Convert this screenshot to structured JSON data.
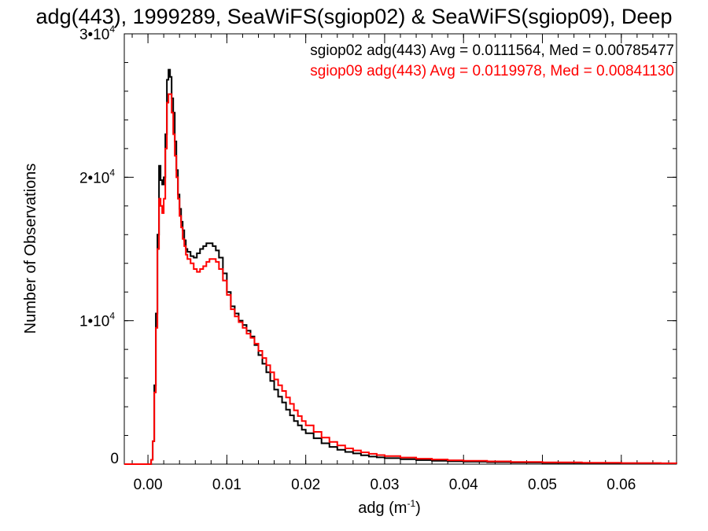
{
  "chart_data": {
    "type": "line",
    "title": "adg(443), 1999289, SeaWiFS(sgiop02) & SeaWiFS(sgiop09), Deep",
    "xlabel": "adg (m",
    "xlabel_sup": "-1",
    "xlabel_close": ")",
    "ylabel": "Number of Observations",
    "xlim": [
      -0.003,
      0.067
    ],
    "ylim": [
      0,
      30000
    ],
    "x_ticks": [
      {
        "value": 0.0,
        "label": "0.00"
      },
      {
        "value": 0.01,
        "label": "0.01"
      },
      {
        "value": 0.02,
        "label": "0.02"
      },
      {
        "value": 0.03,
        "label": "0.03"
      },
      {
        "value": 0.04,
        "label": "0.04"
      },
      {
        "value": 0.05,
        "label": "0.05"
      },
      {
        "value": 0.06,
        "label": "0.06"
      }
    ],
    "y_ticks": [
      {
        "value": 0,
        "label": "0",
        "sup": ""
      },
      {
        "value": 10000,
        "label": "1•10",
        "sup": "4"
      },
      {
        "value": 20000,
        "label": "2•10",
        "sup": "4"
      },
      {
        "value": 30000,
        "label": "3•10",
        "sup": "4"
      }
    ],
    "x_minor_step": 0.002,
    "y_minor_step": 2000,
    "grid": false,
    "series": [
      {
        "name": "sgiop02",
        "annotation": "sgiop02 adg(443) Avg = 0.0111564, Med = 0.00785477",
        "color": "#000000",
        "points": [
          [
            -0.003,
            0
          ],
          [
            0.0002,
            0
          ],
          [
            0.0004,
            300
          ],
          [
            0.0006,
            1600
          ],
          [
            0.0008,
            5500
          ],
          [
            0.001,
            10500
          ],
          [
            0.0012,
            16000
          ],
          [
            0.0014,
            20800
          ],
          [
            0.0016,
            19800
          ],
          [
            0.0018,
            19500
          ],
          [
            0.002,
            20000
          ],
          [
            0.0022,
            23000
          ],
          [
            0.0024,
            26800
          ],
          [
            0.0026,
            27500
          ],
          [
            0.0028,
            27000
          ],
          [
            0.003,
            25500
          ],
          [
            0.0032,
            24500
          ],
          [
            0.0034,
            22500
          ],
          [
            0.0036,
            20500
          ],
          [
            0.0038,
            18800
          ],
          [
            0.004,
            17800
          ],
          [
            0.0042,
            16900
          ],
          [
            0.0044,
            16300
          ],
          [
            0.0046,
            15600
          ],
          [
            0.0048,
            15000
          ],
          [
            0.005,
            14800
          ],
          [
            0.0054,
            14500
          ],
          [
            0.0058,
            14400
          ],
          [
            0.0062,
            14700
          ],
          [
            0.0066,
            15000
          ],
          [
            0.007,
            15200
          ],
          [
            0.0074,
            15400
          ],
          [
            0.0078,
            15400
          ],
          [
            0.0082,
            15200
          ],
          [
            0.0086,
            14900
          ],
          [
            0.009,
            14400
          ],
          [
            0.0095,
            13300
          ],
          [
            0.01,
            12000
          ],
          [
            0.0105,
            11000
          ],
          [
            0.011,
            10500
          ],
          [
            0.0115,
            10000
          ],
          [
            0.012,
            9700
          ],
          [
            0.0125,
            9300
          ],
          [
            0.013,
            8900
          ],
          [
            0.0135,
            8300
          ],
          [
            0.014,
            7600
          ],
          [
            0.0145,
            7000
          ],
          [
            0.015,
            6400
          ],
          [
            0.0155,
            5800
          ],
          [
            0.016,
            5200
          ],
          [
            0.0165,
            4700
          ],
          [
            0.017,
            4300
          ],
          [
            0.0175,
            3800
          ],
          [
            0.018,
            3400
          ],
          [
            0.0185,
            3000
          ],
          [
            0.019,
            2700
          ],
          [
            0.0195,
            2400
          ],
          [
            0.02,
            2150
          ],
          [
            0.021,
            1800
          ],
          [
            0.022,
            1450
          ],
          [
            0.023,
            1200
          ],
          [
            0.024,
            1000
          ],
          [
            0.025,
            850
          ],
          [
            0.026,
            750
          ],
          [
            0.027,
            620
          ],
          [
            0.028,
            530
          ],
          [
            0.029,
            470
          ],
          [
            0.03,
            420
          ],
          [
            0.032,
            340
          ],
          [
            0.034,
            280
          ],
          [
            0.036,
            230
          ],
          [
            0.038,
            200
          ],
          [
            0.04,
            170
          ],
          [
            0.043,
            140
          ],
          [
            0.046,
            110
          ],
          [
            0.05,
            90
          ],
          [
            0.055,
            70
          ],
          [
            0.06,
            55
          ],
          [
            0.065,
            45
          ],
          [
            0.067,
            40
          ]
        ]
      },
      {
        "name": "sgiop09",
        "annotation": "sgiop09 adg(443) Avg = 0.0119978, Med = 0.00841130",
        "color": "#ff0000",
        "points": [
          [
            -0.003,
            0
          ],
          [
            0.0002,
            0
          ],
          [
            0.0004,
            300
          ],
          [
            0.0006,
            1600
          ],
          [
            0.0008,
            5000
          ],
          [
            0.001,
            9500
          ],
          [
            0.0012,
            15000
          ],
          [
            0.0014,
            18500
          ],
          [
            0.0016,
            18000
          ],
          [
            0.0018,
            17500
          ],
          [
            0.002,
            18500
          ],
          [
            0.0022,
            22000
          ],
          [
            0.0024,
            25200
          ],
          [
            0.0026,
            25800
          ],
          [
            0.0028,
            25800
          ],
          [
            0.003,
            24500
          ],
          [
            0.0032,
            23000
          ],
          [
            0.0034,
            21500
          ],
          [
            0.0036,
            20000
          ],
          [
            0.0038,
            18500
          ],
          [
            0.004,
            17300
          ],
          [
            0.0042,
            16500
          ],
          [
            0.0044,
            15700
          ],
          [
            0.0046,
            15200
          ],
          [
            0.0048,
            14600
          ],
          [
            0.005,
            14300
          ],
          [
            0.0054,
            14000
          ],
          [
            0.0058,
            13600
          ],
          [
            0.0062,
            13400
          ],
          [
            0.0066,
            13600
          ],
          [
            0.007,
            13800
          ],
          [
            0.0074,
            14100
          ],
          [
            0.0078,
            14300
          ],
          [
            0.0082,
            14300
          ],
          [
            0.0086,
            14100
          ],
          [
            0.009,
            13600
          ],
          [
            0.0095,
            12800
          ],
          [
            0.01,
            11800
          ],
          [
            0.0105,
            10800
          ],
          [
            0.011,
            10300
          ],
          [
            0.0115,
            9900
          ],
          [
            0.012,
            9500
          ],
          [
            0.0125,
            9100
          ],
          [
            0.013,
            8800
          ],
          [
            0.0135,
            8400
          ],
          [
            0.014,
            7900
          ],
          [
            0.0145,
            7400
          ],
          [
            0.015,
            6900
          ],
          [
            0.0155,
            6400
          ],
          [
            0.016,
            5900
          ],
          [
            0.0165,
            5500
          ],
          [
            0.017,
            5100
          ],
          [
            0.0175,
            4650
          ],
          [
            0.018,
            4200
          ],
          [
            0.0185,
            3750
          ],
          [
            0.019,
            3350
          ],
          [
            0.0195,
            3000
          ],
          [
            0.02,
            2700
          ],
          [
            0.021,
            2250
          ],
          [
            0.022,
            1850
          ],
          [
            0.023,
            1550
          ],
          [
            0.024,
            1300
          ],
          [
            0.025,
            1100
          ],
          [
            0.026,
            950
          ],
          [
            0.027,
            820
          ],
          [
            0.028,
            720
          ],
          [
            0.029,
            630
          ],
          [
            0.03,
            560
          ],
          [
            0.032,
            460
          ],
          [
            0.034,
            380
          ],
          [
            0.036,
            320
          ],
          [
            0.038,
            270
          ],
          [
            0.04,
            230
          ],
          [
            0.043,
            190
          ],
          [
            0.046,
            150
          ],
          [
            0.05,
            120
          ],
          [
            0.055,
            95
          ],
          [
            0.06,
            75
          ],
          [
            0.065,
            60
          ],
          [
            0.067,
            55
          ]
        ]
      }
    ]
  }
}
